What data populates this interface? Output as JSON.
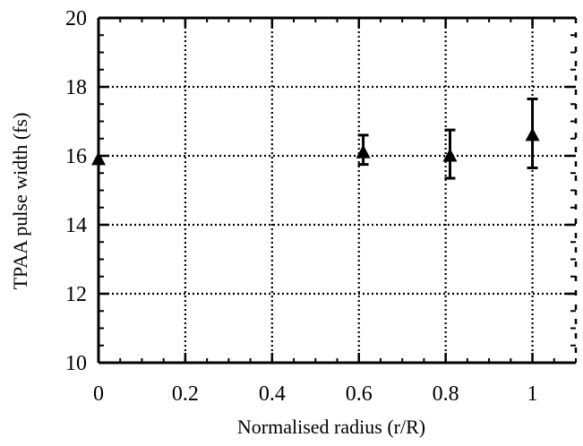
{
  "chart_data": {
    "type": "scatter",
    "title": "",
    "xlabel": "Normalised radius (r/R)",
    "ylabel": "TPAA pulse width (fs)",
    "xlim": [
      0,
      1.1
    ],
    "ylim": [
      10,
      20
    ],
    "xticks": [
      0,
      0.2,
      0.4,
      0.6,
      0.8,
      1
    ],
    "xtick_labels": [
      "0",
      "0.2",
      "0.4",
      "0.6",
      "0.8",
      "1"
    ],
    "yticks": [
      10,
      12,
      14,
      16,
      18,
      20
    ],
    "ytick_labels": [
      "10",
      "12",
      "14",
      "16",
      "18",
      "20"
    ],
    "grid": true,
    "grid_style": "dotted",
    "marker": "triangle",
    "marker_color": "#000000",
    "series": [
      {
        "x": [
          0,
          0.61,
          0.81,
          1.0
        ],
        "y": [
          15.9,
          16.1,
          16.0,
          16.6
        ],
        "y_err_low": [
          null,
          15.75,
          15.35,
          15.65
        ],
        "y_err_high": [
          null,
          16.6,
          16.75,
          17.65
        ]
      }
    ]
  }
}
